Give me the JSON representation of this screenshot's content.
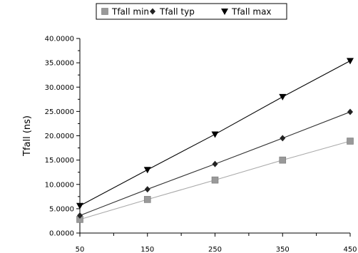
{
  "chart_data": {
    "type": "line",
    "x": [
      50,
      150,
      250,
      350,
      450
    ],
    "x_tick_labels": [
      "50",
      "150",
      "250",
      "350",
      "450"
    ],
    "xlim": [
      50,
      450
    ],
    "ylim": [
      0,
      40
    ],
    "y_ticks": [
      0,
      5,
      10,
      15,
      20,
      25,
      30,
      35,
      40
    ],
    "y_tick_labels": [
      "0.0000",
      "5.0000",
      "10.0000",
      "15.0000",
      "20.0000",
      "25.0000",
      "30.0000",
      "35.0000",
      "40.0000"
    ],
    "ylabel": "Tfall (ns)",
    "xlabel": "",
    "title": "",
    "grid": false,
    "legend_position": "top",
    "series": [
      {
        "name": "Tfall min",
        "marker": "square",
        "color": "#aaaaaa",
        "marker_color": "#999999",
        "values": [
          2.8,
          6.9,
          10.9,
          15.0,
          18.9
        ]
      },
      {
        "name": "Tfall typ",
        "marker": "diamond",
        "color": "#333333",
        "marker_color": "#222222",
        "values": [
          3.6,
          9.0,
          14.2,
          19.5,
          24.9
        ]
      },
      {
        "name": "Tfall max",
        "marker": "triangle-down",
        "color": "#000000",
        "marker_color": "#000000",
        "values": [
          5.6,
          13.0,
          20.3,
          28.0,
          35.4
        ]
      }
    ]
  }
}
